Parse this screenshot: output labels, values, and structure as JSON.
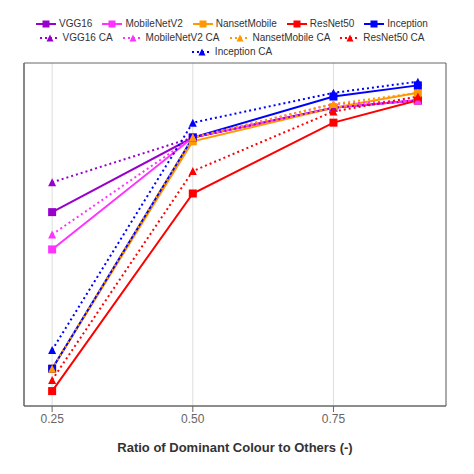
{
  "chart_data": {
    "type": "line",
    "x": [
      0.25,
      0.5,
      0.75,
      0.9
    ],
    "series": [
      {
        "name": "VGG16",
        "color": "#9900CC",
        "marker": "square",
        "line_style": "solid",
        "values": [
          0.52,
          0.72,
          0.8,
          0.82
        ]
      },
      {
        "name": "MobileNetV2",
        "color": "#FF33FF",
        "marker": "square",
        "line_style": "solid",
        "values": [
          0.42,
          0.72,
          0.8,
          0.82
        ]
      },
      {
        "name": "NansetMobile",
        "color": "#FF9900",
        "marker": "square",
        "line_style": "solid",
        "values": [
          0.1,
          0.71,
          0.8,
          0.84
        ]
      },
      {
        "name": "ResNet50",
        "color": "#FF0000",
        "marker": "square",
        "line_style": "solid",
        "values": [
          0.04,
          0.57,
          0.76,
          0.82
        ]
      },
      {
        "name": "Inception",
        "color": "#0000FF",
        "marker": "square",
        "line_style": "solid",
        "values": [
          0.1,
          0.72,
          0.83,
          0.86
        ]
      },
      {
        "name": "VGG16 CA",
        "color": "#9900CC",
        "marker": "triangle",
        "line_style": "dotted",
        "values": [
          0.6,
          0.72,
          0.8,
          0.82
        ]
      },
      {
        "name": "MobileNetV2 CA",
        "color": "#FF33FF",
        "marker": "triangle",
        "line_style": "dotted",
        "values": [
          0.46,
          0.72,
          0.81,
          0.82
        ]
      },
      {
        "name": "NansetMobile CA",
        "color": "#FF9900",
        "marker": "triangle",
        "line_style": "dotted",
        "values": [
          0.1,
          0.72,
          0.81,
          0.84
        ]
      },
      {
        "name": "ResNet50 CA",
        "color": "#FF0000",
        "marker": "triangle",
        "line_style": "dotted",
        "values": [
          0.07,
          0.63,
          0.79,
          0.83
        ]
      },
      {
        "name": "Inception CA",
        "color": "#0000FF",
        "marker": "triangle",
        "line_style": "dotted",
        "values": [
          0.15,
          0.76,
          0.84,
          0.87
        ]
      }
    ],
    "xlabel": "Ratio of Dominant Colour to Others (-)",
    "xlim": [
      0.2,
      0.95
    ],
    "ylim": [
      0.0,
      0.92
    ],
    "xticks": [
      0.25,
      {
        "value": 0.5,
        "label": "0.50"
      },
      0.75
    ],
    "grid": true,
    "legend": "top",
    "tick_labels": "x"
  }
}
